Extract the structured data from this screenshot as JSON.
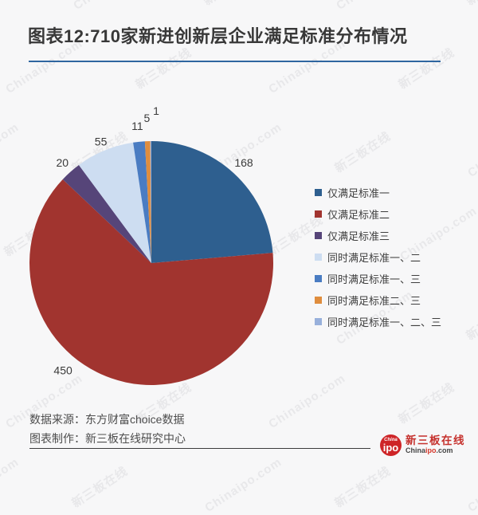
{
  "page": {
    "background": "#F7F7F8"
  },
  "header": {
    "title": "图表12:710家新进创新层企业满足标准分布情况",
    "underline_color": "#2F66A0"
  },
  "chart_data": {
    "type": "pie",
    "title": "图表12:710家新进创新层企业满足标准分布情况",
    "total": 710,
    "legend_position": "right",
    "start_angle_deg": 0,
    "direction": "clockwise",
    "series": [
      {
        "name": "仅满足标准一",
        "value": 168,
        "color": "#2E5F8F"
      },
      {
        "name": "仅满足标准二",
        "value": 450,
        "color": "#A1342F"
      },
      {
        "name": "仅满足标准三",
        "value": 20,
        "color": "#564579"
      },
      {
        "name": "同时满足标准一、二",
        "value": 55,
        "color": "#CDDDF1"
      },
      {
        "name": "同时满足标准一、三",
        "value": 11,
        "color": "#4A7CC2"
      },
      {
        "name": "同时满足标准二、三",
        "value": 5,
        "color": "#DF8D3E"
      },
      {
        "name": "同时满足标准一、二、三",
        "value": 1,
        "color": "#98B0DB"
      }
    ]
  },
  "footer": {
    "source": "数据来源：东方财富choice数据",
    "maker": "图表制作：新三板在线研究中心"
  },
  "logo": {
    "badge_top": "China",
    "badge_main": "ipo",
    "name_cn": "新三板在线",
    "domain_prefix": "China",
    "domain_mid": "ipo",
    "domain_suffix": ".com"
  },
  "watermark": {
    "texts": [
      "新三板在线",
      "Chinaipo.com"
    ]
  }
}
